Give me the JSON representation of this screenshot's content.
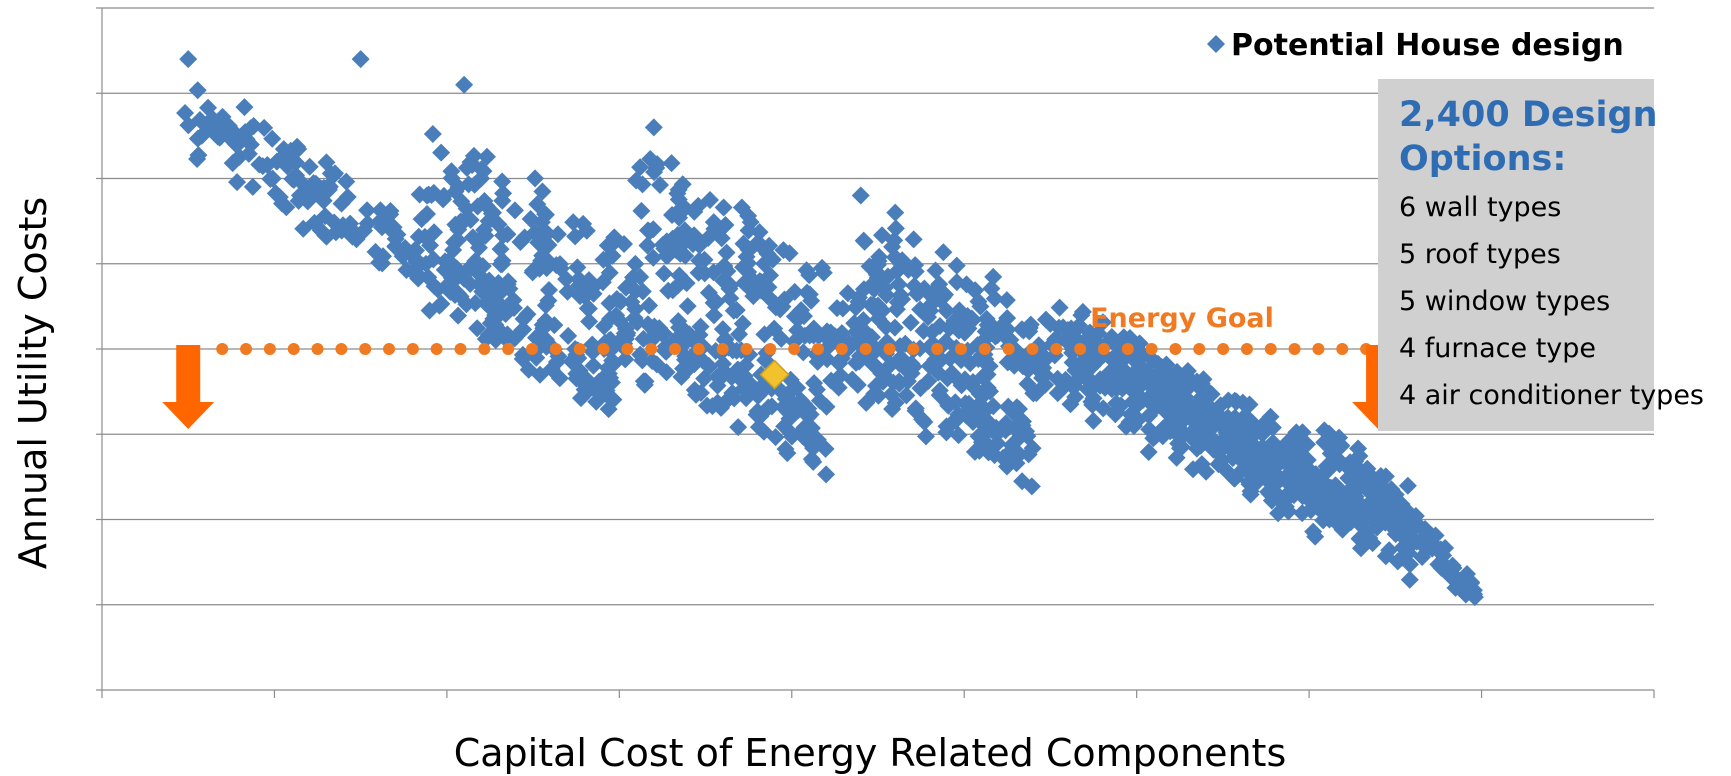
{
  "chart_data": {
    "type": "scatter",
    "title": "",
    "xlabel": "Capital Cost of Energy Related Components",
    "ylabel": "Annual Utility Costs",
    "xlim": [
      0,
      9
    ],
    "ylim": [
      0,
      8
    ],
    "x_ticks": [
      0,
      1,
      2,
      3,
      4,
      5,
      6,
      7,
      8,
      9
    ],
    "y_gridlines": [
      1,
      2,
      3,
      4,
      5,
      6,
      7,
      8
    ],
    "grid": true,
    "legend_position": "top-right",
    "series": [
      {
        "name": "Potential House design",
        "marker": "diamond",
        "color": "#4a7ebb",
        "approx_count": 2400,
        "clusters": [
          {
            "x_range": [
              0.5,
              3.0
            ],
            "y_top": [
              7.4,
              4.0
            ],
            "y_bottom": [
              6.2,
              3.0
            ],
            "count": 260
          },
          {
            "x_range": [
              1.8,
              4.2
            ],
            "y_top": [
              7.1,
              3.6
            ],
            "y_bottom": [
              5.0,
              2.4
            ],
            "count": 300
          },
          {
            "x_range": [
              3.1,
              5.4
            ],
            "y_top": [
              6.6,
              3.4
            ],
            "y_bottom": [
              4.6,
              2.2
            ],
            "count": 320
          },
          {
            "x_range": [
              4.4,
              7.2
            ],
            "y_top": [
              5.8,
              2.8
            ],
            "y_bottom": [
              4.2,
              1.6
            ],
            "count": 420
          },
          {
            "x_range": [
              5.6,
              7.6
            ],
            "y_top": [
              4.6,
              2.4
            ],
            "y_bottom": [
              3.8,
              1.2
            ],
            "count": 320
          },
          {
            "x_range": [
              7.1,
              8.0
            ],
            "y_top": [
              3.3,
              1.2
            ],
            "y_bottom": [
              2.7,
              0.9
            ],
            "count": 110
          }
        ],
        "outliers": [
          [
            1.5,
            7.4
          ],
          [
            2.1,
            7.1
          ],
          [
            3.2,
            6.6
          ],
          [
            4.4,
            5.8
          ],
          [
            4.6,
            5.6
          ],
          [
            0.5,
            7.4
          ]
        ]
      }
    ],
    "highlight_point": {
      "x": 3.9,
      "y": 3.7,
      "color": "#f2c12e"
    },
    "energy_goal": {
      "label": "Energy Goal",
      "y": 4.0,
      "x_range": [
        0.5,
        7.4
      ],
      "color": "#f07a22",
      "arrow_color": "#ff6600"
    },
    "info_box": {
      "title": "2,400 Design Options:",
      "items": [
        "6 wall types",
        "5 roof types",
        "5 window types",
        "4 furnace type",
        "4 air conditioner types"
      ],
      "background": "#d0d0d0",
      "title_color": "#2e6db4"
    }
  }
}
